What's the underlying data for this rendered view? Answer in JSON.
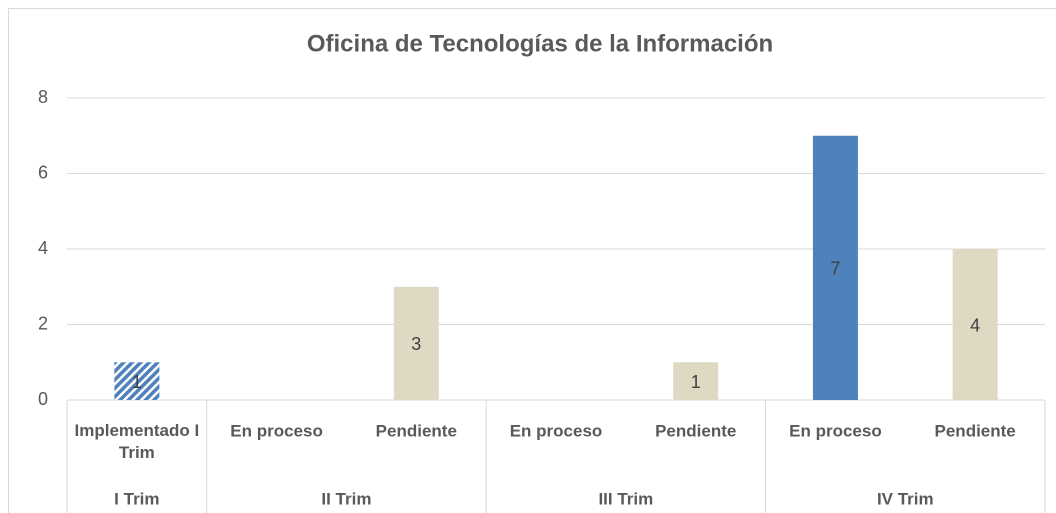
{
  "chart_data": {
    "type": "bar",
    "title": "Oficina de Tecnologías de la Información",
    "categories": [
      "Implementado I Trim",
      "En proceso",
      "Pendiente",
      "En proceso",
      "Pendiente",
      "En proceso",
      "Pendiente"
    ],
    "groups": [
      {
        "label": "I Trim",
        "span": 1
      },
      {
        "label": "II Trim",
        "span": 2
      },
      {
        "label": "III Trim",
        "span": 2
      },
      {
        "label": "IV Trim",
        "span": 2
      }
    ],
    "values": [
      1,
      null,
      3,
      null,
      1,
      7,
      4
    ],
    "colors": [
      "#4f81bd",
      "#4f81bd",
      "#ddd9c3",
      "#4f81bd",
      "#ddd9c3",
      "#4f81bd",
      "#ddd9c3"
    ],
    "hatched": [
      0
    ],
    "ylim": [
      0,
      8
    ],
    "yticks": [
      0,
      2,
      4,
      6,
      8
    ],
    "grid": true
  }
}
